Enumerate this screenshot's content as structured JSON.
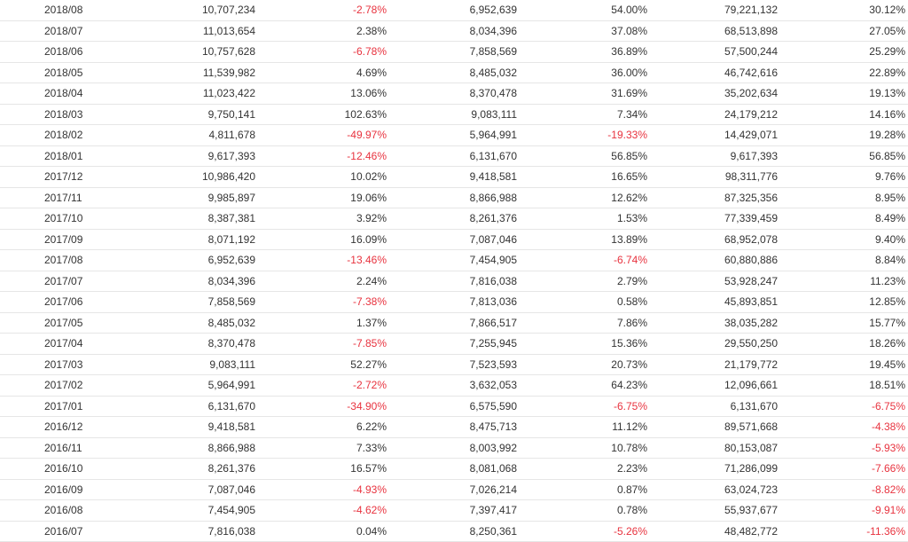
{
  "table": {
    "rows": [
      [
        "2018/08",
        "10,707,234",
        "-2.78%",
        "6,952,639",
        "54.00%",
        "79,221,132",
        "30.12%"
      ],
      [
        "2018/07",
        "11,013,654",
        "2.38%",
        "8,034,396",
        "37.08%",
        "68,513,898",
        "27.05%"
      ],
      [
        "2018/06",
        "10,757,628",
        "-6.78%",
        "7,858,569",
        "36.89%",
        "57,500,244",
        "25.29%"
      ],
      [
        "2018/05",
        "11,539,982",
        "4.69%",
        "8,485,032",
        "36.00%",
        "46,742,616",
        "22.89%"
      ],
      [
        "2018/04",
        "11,023,422",
        "13.06%",
        "8,370,478",
        "31.69%",
        "35,202,634",
        "19.13%"
      ],
      [
        "2018/03",
        "9,750,141",
        "102.63%",
        "9,083,111",
        "7.34%",
        "24,179,212",
        "14.16%"
      ],
      [
        "2018/02",
        "4,811,678",
        "-49.97%",
        "5,964,991",
        "-19.33%",
        "14,429,071",
        "19.28%"
      ],
      [
        "2018/01",
        "9,617,393",
        "-12.46%",
        "6,131,670",
        "56.85%",
        "9,617,393",
        "56.85%"
      ],
      [
        "2017/12",
        "10,986,420",
        "10.02%",
        "9,418,581",
        "16.65%",
        "98,311,776",
        "9.76%"
      ],
      [
        "2017/11",
        "9,985,897",
        "19.06%",
        "8,866,988",
        "12.62%",
        "87,325,356",
        "8.95%"
      ],
      [
        "2017/10",
        "8,387,381",
        "3.92%",
        "8,261,376",
        "1.53%",
        "77,339,459",
        "8.49%"
      ],
      [
        "2017/09",
        "8,071,192",
        "16.09%",
        "7,087,046",
        "13.89%",
        "68,952,078",
        "9.40%"
      ],
      [
        "2017/08",
        "6,952,639",
        "-13.46%",
        "7,454,905",
        "-6.74%",
        "60,880,886",
        "8.84%"
      ],
      [
        "2017/07",
        "8,034,396",
        "2.24%",
        "7,816,038",
        "2.79%",
        "53,928,247",
        "11.23%"
      ],
      [
        "2017/06",
        "7,858,569",
        "-7.38%",
        "7,813,036",
        "0.58%",
        "45,893,851",
        "12.85%"
      ],
      [
        "2017/05",
        "8,485,032",
        "1.37%",
        "7,866,517",
        "7.86%",
        "38,035,282",
        "15.77%"
      ],
      [
        "2017/04",
        "8,370,478",
        "-7.85%",
        "7,255,945",
        "15.36%",
        "29,550,250",
        "18.26%"
      ],
      [
        "2017/03",
        "9,083,111",
        "52.27%",
        "7,523,593",
        "20.73%",
        "21,179,772",
        "19.45%"
      ],
      [
        "2017/02",
        "5,964,991",
        "-2.72%",
        "3,632,053",
        "64.23%",
        "12,096,661",
        "18.51%"
      ],
      [
        "2017/01",
        "6,131,670",
        "-34.90%",
        "6,575,590",
        "-6.75%",
        "6,131,670",
        "-6.75%"
      ],
      [
        "2016/12",
        "9,418,581",
        "6.22%",
        "8,475,713",
        "11.12%",
        "89,571,668",
        "-4.38%"
      ],
      [
        "2016/11",
        "8,866,988",
        "7.33%",
        "8,003,992",
        "10.78%",
        "80,153,087",
        "-5.93%"
      ],
      [
        "2016/10",
        "8,261,376",
        "16.57%",
        "8,081,068",
        "2.23%",
        "71,286,099",
        "-7.66%"
      ],
      [
        "2016/09",
        "7,087,046",
        "-4.93%",
        "7,026,214",
        "0.87%",
        "63,024,723",
        "-8.82%"
      ],
      [
        "2016/08",
        "7,454,905",
        "-4.62%",
        "7,397,417",
        "0.78%",
        "55,937,677",
        "-9.91%"
      ],
      [
        "2016/07",
        "7,816,038",
        "0.04%",
        "8,250,361",
        "-5.26%",
        "48,482,772",
        "-11.36%"
      ]
    ]
  },
  "colors": {
    "text": "#333333",
    "negative": "#e8333f",
    "row_border": "#e6e6e6"
  }
}
